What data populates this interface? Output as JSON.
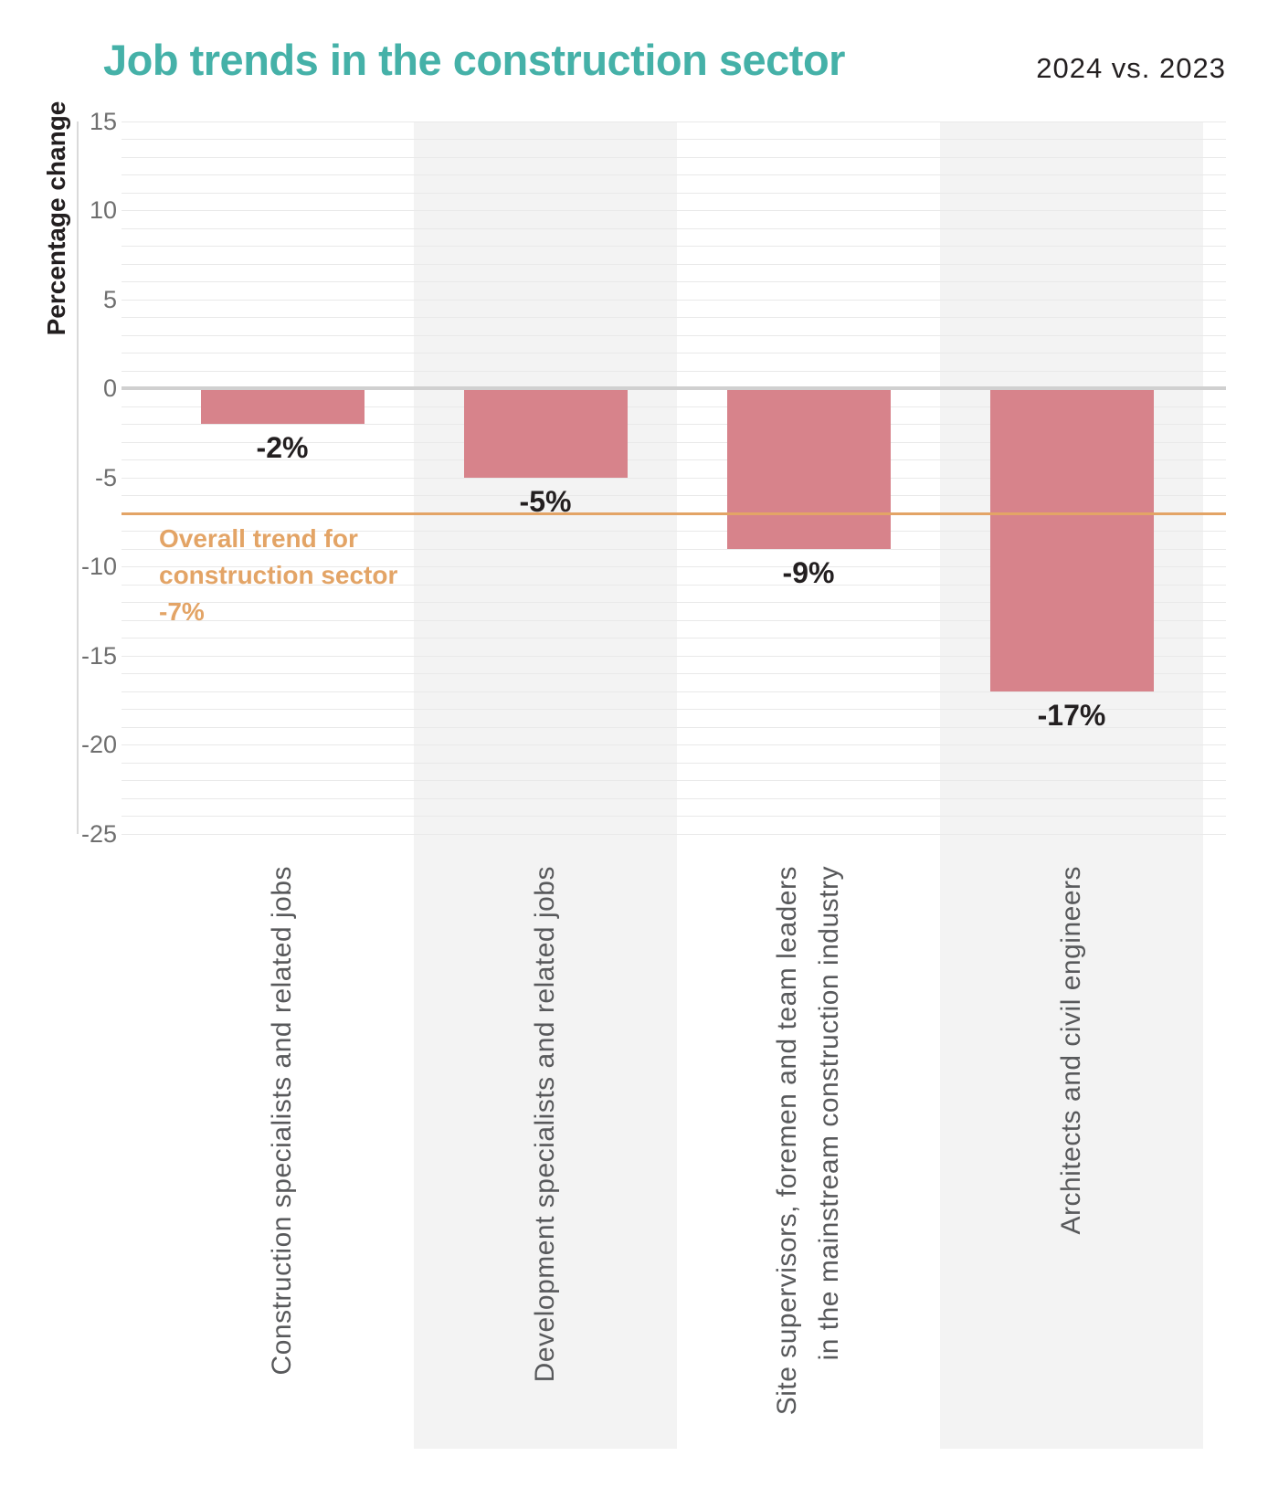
{
  "chart_data": {
    "type": "bar",
    "title": "Job trends in the construction sector",
    "subtitle": "2024 vs. 2023",
    "ylabel": "Percentage change",
    "ylim": [
      -25,
      15
    ],
    "yticks": [
      15,
      10,
      5,
      0,
      -5,
      -10,
      -15,
      -20,
      -25
    ],
    "grid": "minor gridlines every 1 unit, on",
    "legend_position": "none",
    "categories": [
      "Construction specialists and related jobs",
      "Development specialists and related jobs",
      "Site supervisors, foremen and team leaders in the mainstream construction industry",
      "Architects and civil engineers"
    ],
    "category_label_lines": [
      [
        "Construction specialists and related jobs"
      ],
      [
        "Development specialists and related jobs"
      ],
      [
        "Site supervisors, foremen and team leaders",
        "in the mainstream construction industry"
      ],
      [
        "Architects and civil engineers"
      ]
    ],
    "values": [
      -2,
      -5,
      -9,
      -17
    ],
    "value_labels": [
      "-2%",
      "-5%",
      "-9%",
      "-17%"
    ],
    "shaded_column_indices": [
      1,
      3
    ],
    "reference_line": {
      "value": -7,
      "label_lines": [
        "Overall trend for",
        "construction sector",
        "-7%"
      ]
    }
  },
  "colors": {
    "title_teal": "#45b1a8",
    "subtitle_dark": "#231f20",
    "bar_pink": "#d7838b",
    "trend_orange": "#e3a466",
    "band_gray": "#f3f3f3",
    "gridline_gray": "#e9e9e9",
    "zero_line_gray": "#d0d0d0",
    "axis_line_gray": "#dadada",
    "tick_gray": "#6f6f6f",
    "category_gray": "#58595b",
    "value_label_dark": "#231f20"
  }
}
